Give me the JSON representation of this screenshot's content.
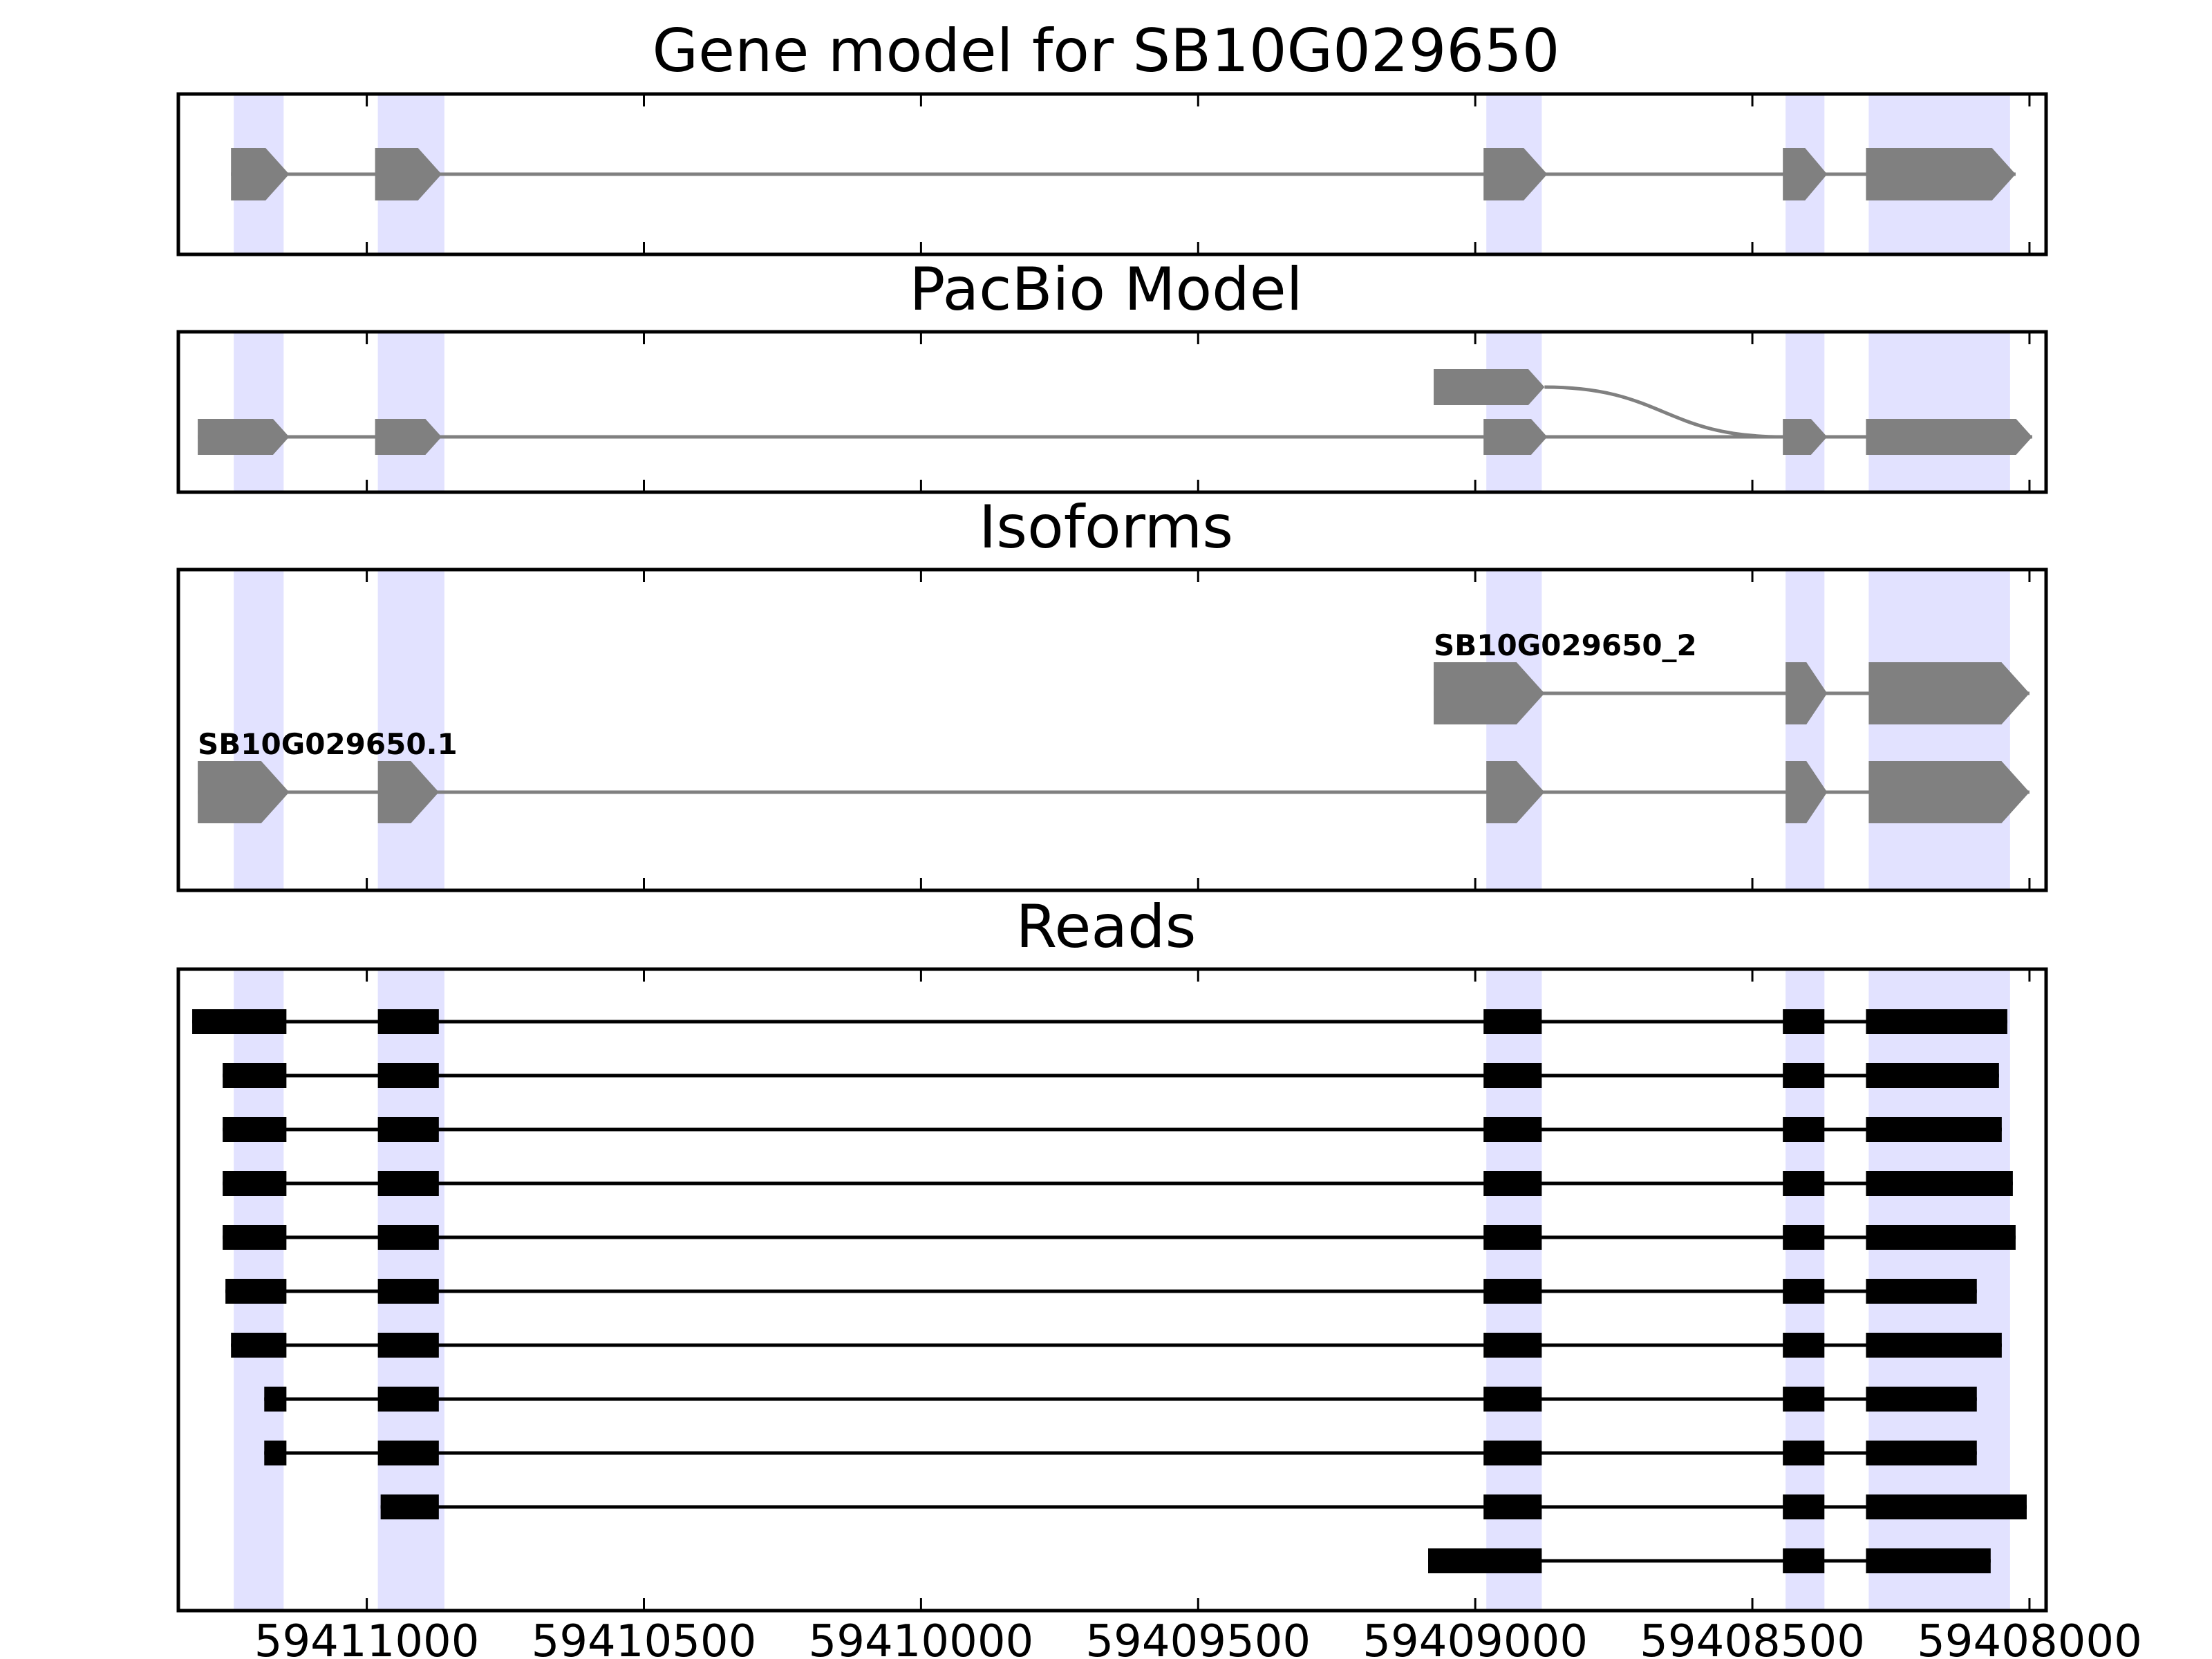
{
  "chart_data": {
    "type": "gene-track",
    "x_axis": {
      "direction": "reversed",
      "xlim": [
        59411340,
        59407970
      ],
      "ticks": [
        59411000,
        59410500,
        59410000,
        59409500,
        59409000,
        59408500,
        59408000
      ],
      "tick_labels": [
        "59411000",
        "59410500",
        "59410000",
        "59409500",
        "59409000",
        "59408500",
        "59408000"
      ]
    },
    "highlight_color": "#e2e2ff",
    "exon_color": "#808080",
    "read_color": "#000000",
    "shaded_exon_regions": [
      [
        59411240,
        59411150
      ],
      [
        59410980,
        59410860
      ],
      [
        59408980,
        59408880
      ],
      [
        59408440,
        59408370
      ],
      [
        59408290,
        59408035
      ]
    ],
    "panels": [
      {
        "id": "gene-model",
        "title": "Gene model for SB10G029650",
        "tracks": [
          {
            "label": "",
            "exons": [
              [
                59411245,
                59411140
              ],
              [
                59410985,
                59410865
              ],
              [
                59408985,
                59408870
              ],
              [
                59408445,
                59408365
              ],
              [
                59408295,
                59408025
              ]
            ]
          }
        ]
      },
      {
        "id": "pacbio-model",
        "title": "PacBio Model",
        "tracks": [
          {
            "label": "",
            "exons": [
              [
                59409075,
                59408875
              ]
            ],
            "connects_to_next_track_exon": 3
          },
          {
            "label": "",
            "exons": [
              [
                59411305,
                59411140
              ],
              [
                59410985,
                59410865
              ],
              [
                59408985,
                59408870
              ],
              [
                59408445,
                59408365
              ],
              [
                59408295,
                59407995
              ]
            ]
          }
        ]
      },
      {
        "id": "isoforms",
        "title": "Isoforms",
        "tracks": [
          {
            "label": "SB10G029650_2",
            "exons": [
              [
                59409075,
                59408875
              ],
              [
                59408440,
                59408365
              ],
              [
                59408290,
                59408000
              ]
            ]
          },
          {
            "label": "SB10G029650.1",
            "exons": [
              [
                59411305,
                59411140
              ],
              [
                59410980,
                59410870
              ],
              [
                59408980,
                59408875
              ],
              [
                59408440,
                59408365
              ],
              [
                59408290,
                59408000
              ]
            ]
          }
        ]
      },
      {
        "id": "reads",
        "title": "Reads",
        "tracks": [
          {
            "exons": [
              [
                59411315,
                59411145
              ],
              [
                59410980,
                59410870
              ],
              [
                59408985,
                59408880
              ],
              [
                59408445,
                59408370
              ],
              [
                59408295,
                59408040
              ]
            ]
          },
          {
            "exons": [
              [
                59411260,
                59411145
              ],
              [
                59410980,
                59410870
              ],
              [
                59408985,
                59408880
              ],
              [
                59408445,
                59408370
              ],
              [
                59408295,
                59408055
              ]
            ]
          },
          {
            "exons": [
              [
                59411260,
                59411145
              ],
              [
                59410980,
                59410870
              ],
              [
                59408985,
                59408880
              ],
              [
                59408445,
                59408370
              ],
              [
                59408295,
                59408050
              ]
            ]
          },
          {
            "exons": [
              [
                59411260,
                59411145
              ],
              [
                59410980,
                59410870
              ],
              [
                59408985,
                59408880
              ],
              [
                59408445,
                59408370
              ],
              [
                59408295,
                59408030
              ]
            ]
          },
          {
            "exons": [
              [
                59411260,
                59411145
              ],
              [
                59410980,
                59410870
              ],
              [
                59408985,
                59408880
              ],
              [
                59408445,
                59408370
              ],
              [
                59408295,
                59408025
              ]
            ]
          },
          {
            "exons": [
              [
                59411255,
                59411145
              ],
              [
                59410980,
                59410870
              ],
              [
                59408985,
                59408880
              ],
              [
                59408445,
                59408370
              ],
              [
                59408295,
                59408095
              ]
            ]
          },
          {
            "exons": [
              [
                59411245,
                59411145
              ],
              [
                59410980,
                59410870
              ],
              [
                59408985,
                59408880
              ],
              [
                59408445,
                59408370
              ],
              [
                59408295,
                59408050
              ]
            ]
          },
          {
            "exons": [
              [
                59411185,
                59411145
              ],
              [
                59410980,
                59410870
              ],
              [
                59408985,
                59408880
              ],
              [
                59408445,
                59408370
              ],
              [
                59408295,
                59408095
              ]
            ]
          },
          {
            "exons": [
              [
                59411185,
                59411145
              ],
              [
                59410980,
                59410870
              ],
              [
                59408985,
                59408880
              ],
              [
                59408445,
                59408370
              ],
              [
                59408295,
                59408095
              ]
            ]
          },
          {
            "exons": [
              [
                59410975,
                59410870
              ],
              [
                59408985,
                59408880
              ],
              [
                59408445,
                59408370
              ],
              [
                59408295,
                59408005
              ]
            ]
          },
          {
            "exons": [
              [
                59409085,
                59408880
              ],
              [
                59408445,
                59408370
              ],
              [
                59408295,
                59408070
              ]
            ]
          }
        ]
      }
    ]
  }
}
